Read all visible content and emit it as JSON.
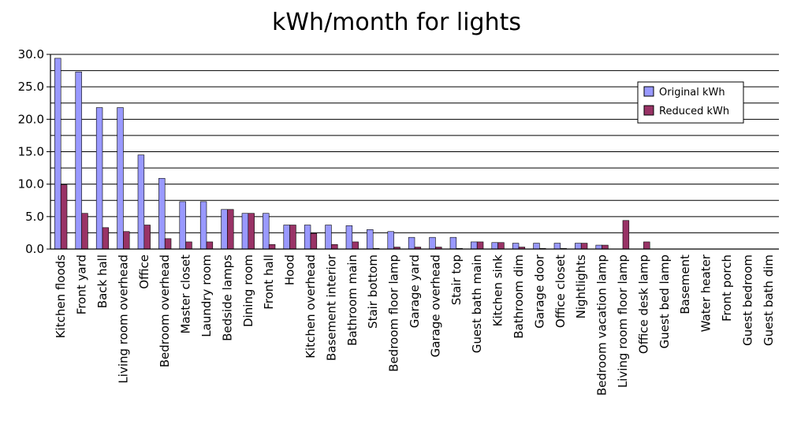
{
  "chart_data": {
    "type": "bar",
    "title": "kWh/month for lights",
    "xlabel": "",
    "ylabel": "",
    "ylim": [
      0,
      30
    ],
    "yticks": [
      "0.0",
      "5.0",
      "10.0",
      "15.0",
      "20.0",
      "25.0",
      "30.0"
    ],
    "grid": true,
    "legend_position": "top-right",
    "categories": [
      "Kitchen floods",
      "Front yard",
      "Back hall",
      "Living room overhead",
      "Office",
      "Bedroom overhead",
      "Master closet",
      "Laundry room",
      "Bedside lamps",
      "Dining room",
      "Front hall",
      "Hood",
      "Kitchen overhead",
      "Basement interior",
      "Bathroom main",
      "Stair bottom",
      "Bedroom floor lamp",
      "Garage yard",
      "Garage overhead",
      "Stair top",
      "Guest bath main",
      "Kitchen sink",
      "Bathroom dim",
      "Garage door",
      "Office closet",
      "Nightlights",
      "Bedroom vacation lamp",
      "Living room floor lamp",
      "Office desk lamp",
      "Guest bed lamp",
      "Basement",
      "Water heater",
      "Front porch",
      "Guest bedroom",
      "Guest bath dim"
    ],
    "series": [
      {
        "name": "Original kWh",
        "color": "#9999ff",
        "values": [
          29.4,
          27.3,
          21.8,
          21.8,
          14.5,
          10.9,
          7.3,
          7.3,
          6.1,
          5.5,
          5.5,
          3.7,
          3.7,
          3.7,
          3.6,
          3.0,
          2.7,
          1.8,
          1.8,
          1.8,
          1.1,
          1.0,
          0.9,
          0.9,
          0.9,
          0.9,
          0.6,
          0.0,
          0.0,
          0.0,
          0.0,
          0.0,
          0.0,
          0.0,
          0.0
        ]
      },
      {
        "name": "Reduced kWh",
        "color": "#993366",
        "values": [
          9.9,
          5.5,
          3.3,
          2.7,
          3.7,
          1.6,
          1.1,
          1.1,
          6.1,
          5.5,
          0.7,
          3.7,
          2.4,
          0.7,
          1.1,
          0.1,
          0.3,
          0.3,
          0.3,
          0.1,
          1.1,
          1.0,
          0.3,
          0.1,
          0.1,
          0.9,
          0.6,
          4.4,
          1.1,
          0.0,
          0.0,
          0.0,
          0.0,
          0.0,
          0.0
        ]
      }
    ]
  }
}
